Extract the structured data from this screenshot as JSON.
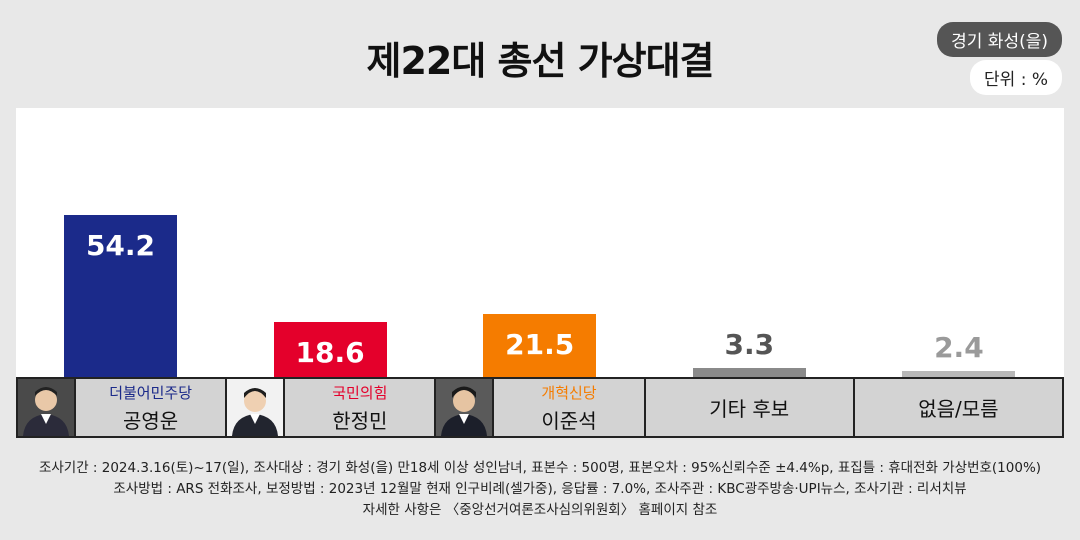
{
  "title": "제22대 총선 가상대결",
  "region": "경기 화성(을)",
  "unit": "단위 : %",
  "chart_data": {
    "type": "bar",
    "title": "제22대 총선 가상대결",
    "categories": [
      "공영운",
      "한정민",
      "이준석",
      "기타 후보",
      "없음/모름"
    ],
    "values": [
      54.2,
      18.6,
      21.5,
      3.3,
      2.4
    ],
    "ylim": [
      0,
      60
    ],
    "grid": false
  },
  "candidates": [
    {
      "party": "더불어민주당",
      "name": "공영운",
      "color": "#1b2a8a",
      "label_color": "#ffffff",
      "party_color": "#1b2a8a",
      "photo": true
    },
    {
      "party": "국민의힘",
      "name": "한정민",
      "color": "#e4002b",
      "label_color": "#ffffff",
      "party_color": "#e4002b",
      "photo": true
    },
    {
      "party": "개혁신당",
      "name": "이준석",
      "color": "#f57c00",
      "label_color": "#ffffff",
      "party_color": "#f57c00",
      "photo": true
    },
    {
      "party": "",
      "name": "기타 후보",
      "color": "#8a8a8a",
      "label_color": "#555555",
      "party_color": "#555555",
      "photo": false
    },
    {
      "party": "",
      "name": "없음/모름",
      "color": "#b8b8b8",
      "label_color": "#9a9a9a",
      "party_color": "#555555",
      "photo": false
    }
  ],
  "footer": {
    "line1": "조사기간 : 2024.3.16(토)~17(일), 조사대상 : 경기 화성(을) 만18세 이상 성인남녀, 표본수 : 500명, 표본오차 : 95%신뢰수준 ±4.4%p, 표집틀 : 휴대전화 가상번호(100%)",
    "line2": "조사방법 : ARS 전화조사, 보정방법 : 2023년 12월말 현재 인구비례(셀가중), 응답률 : 7.0%, 조사주관 : KBC광주방송·UPI뉴스, 조사기관 : 리서치뷰",
    "line3": "자세한 사항은 〈중앙선거여론조사심의위원회〉 홈페이지 참조"
  }
}
